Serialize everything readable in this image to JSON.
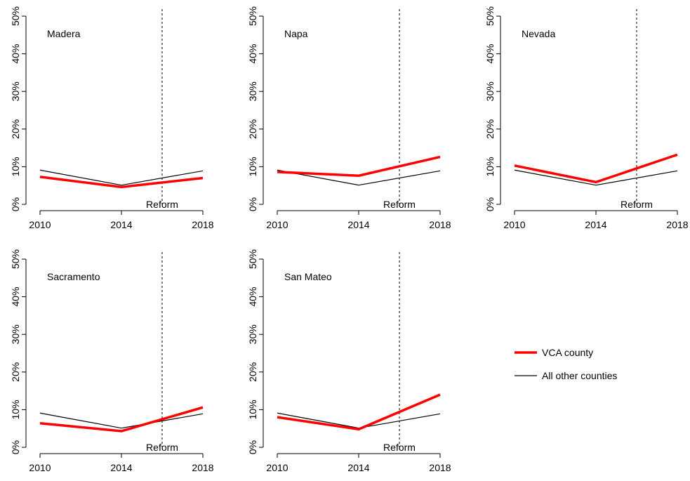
{
  "chart_data": [
    {
      "type": "line",
      "title": "Madera",
      "x": [
        2010,
        2014,
        2018
      ],
      "series": [
        {
          "name": "VCA county",
          "color": "#ff0000",
          "values": [
            7.3,
            4.6,
            7.0
          ]
        },
        {
          "name": "All other counties",
          "color": "#000000",
          "values": [
            9.1,
            5.1,
            8.9
          ]
        }
      ],
      "xlim": [
        2010,
        2018
      ],
      "xticks": [
        2010,
        2014,
        2018
      ],
      "ylim": [
        0,
        50
      ],
      "yticks": [
        {
          "value": 0,
          "label": "0%"
        },
        {
          "value": 10,
          "label": "10%"
        },
        {
          "value": 20,
          "label": "20%"
        },
        {
          "value": 30,
          "label": "30%"
        },
        {
          "value": 40,
          "label": "40%"
        },
        {
          "value": 50,
          "label": "50%"
        }
      ],
      "annotations": [
        {
          "x": 2016,
          "text": "Reform"
        }
      ]
    },
    {
      "type": "line",
      "title": "Napa",
      "x": [
        2010,
        2014,
        2018
      ],
      "series": [
        {
          "name": "VCA county",
          "color": "#ff0000",
          "values": [
            8.6,
            7.6,
            12.6
          ]
        },
        {
          "name": "All other counties",
          "color": "#000000",
          "values": [
            9.1,
            5.1,
            8.9
          ]
        }
      ],
      "xlim": [
        2010,
        2018
      ],
      "xticks": [
        2010,
        2014,
        2018
      ],
      "ylim": [
        0,
        50
      ],
      "yticks": [
        {
          "value": 0,
          "label": "0%"
        },
        {
          "value": 10,
          "label": "10%"
        },
        {
          "value": 20,
          "label": "20%"
        },
        {
          "value": 30,
          "label": "30%"
        },
        {
          "value": 40,
          "label": "40%"
        },
        {
          "value": 50,
          "label": "50%"
        }
      ],
      "annotations": [
        {
          "x": 2016,
          "text": "Reform"
        }
      ]
    },
    {
      "type": "line",
      "title": "Nevada",
      "x": [
        2010,
        2014,
        2018
      ],
      "series": [
        {
          "name": "VCA county",
          "color": "#ff0000",
          "values": [
            10.3,
            5.9,
            13.2
          ]
        },
        {
          "name": "All other counties",
          "color": "#000000",
          "values": [
            9.1,
            5.1,
            8.9
          ]
        }
      ],
      "xlim": [
        2010,
        2018
      ],
      "xticks": [
        2010,
        2014,
        2018
      ],
      "ylim": [
        0,
        50
      ],
      "yticks": [
        {
          "value": 0,
          "label": "0%"
        },
        {
          "value": 10,
          "label": "10%"
        },
        {
          "value": 20,
          "label": "20%"
        },
        {
          "value": 30,
          "label": "30%"
        },
        {
          "value": 40,
          "label": "40%"
        },
        {
          "value": 50,
          "label": "50%"
        }
      ],
      "annotations": [
        {
          "x": 2016,
          "text": "Reform"
        }
      ]
    },
    {
      "type": "line",
      "title": "Sacramento",
      "x": [
        2010,
        2014,
        2018
      ],
      "series": [
        {
          "name": "VCA county",
          "color": "#ff0000",
          "values": [
            6.4,
            4.3,
            10.6
          ]
        },
        {
          "name": "All other counties",
          "color": "#000000",
          "values": [
            9.1,
            5.1,
            8.9
          ]
        }
      ],
      "xlim": [
        2010,
        2018
      ],
      "xticks": [
        2010,
        2014,
        2018
      ],
      "ylim": [
        0,
        50
      ],
      "yticks": [
        {
          "value": 0,
          "label": "0%"
        },
        {
          "value": 10,
          "label": "10%"
        },
        {
          "value": 20,
          "label": "20%"
        },
        {
          "value": 30,
          "label": "30%"
        },
        {
          "value": 40,
          "label": "40%"
        },
        {
          "value": 50,
          "label": "50%"
        }
      ],
      "annotations": [
        {
          "x": 2016,
          "text": "Reform"
        }
      ]
    },
    {
      "type": "line",
      "title": "San Mateo",
      "x": [
        2010,
        2014,
        2018
      ],
      "series": [
        {
          "name": "VCA county",
          "color": "#ff0000",
          "values": [
            8.0,
            4.8,
            14.0
          ]
        },
        {
          "name": "All other counties",
          "color": "#000000",
          "values": [
            9.1,
            5.1,
            8.9
          ]
        }
      ],
      "xlim": [
        2010,
        2018
      ],
      "xticks": [
        2010,
        2014,
        2018
      ],
      "ylim": [
        0,
        50
      ],
      "yticks": [
        {
          "value": 0,
          "label": "0%"
        },
        {
          "value": 10,
          "label": "10%"
        },
        {
          "value": 20,
          "label": "20%"
        },
        {
          "value": 30,
          "label": "30%"
        },
        {
          "value": 40,
          "label": "40%"
        },
        {
          "value": 50,
          "label": "50%"
        }
      ],
      "annotations": [
        {
          "x": 2016,
          "text": "Reform"
        }
      ]
    }
  ]
}
